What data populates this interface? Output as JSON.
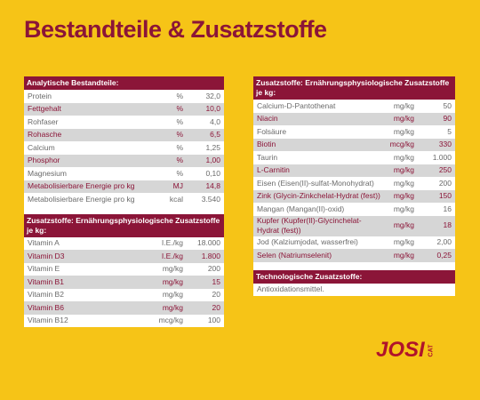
{
  "title": "Bestandteile & Zusatzstoffe",
  "tables": [
    {
      "header": "Analytische Bestandteile:",
      "rows": [
        [
          "Protein",
          "%",
          "32,0"
        ],
        [
          "Fettgehalt",
          "%",
          "10,0"
        ],
        [
          "Rohfaser",
          "%",
          "4,0"
        ],
        [
          "Rohasche",
          "%",
          "6,5"
        ],
        [
          "Calcium",
          "%",
          "1,25"
        ],
        [
          "Phosphor",
          "%",
          "1,00"
        ],
        [
          "Magnesium",
          "%",
          "0,10"
        ],
        [
          "Metabolisierbare Energie pro kg",
          "MJ",
          "14,8"
        ],
        [
          "Metabolisierbare Energie pro kg",
          "kcal",
          "3.540"
        ]
      ]
    },
    {
      "header": "Zusatzstoffe: Ernährungsphysiologische Zusatzstoffe je kg:",
      "rows": [
        [
          "Vitamin A",
          "I.E./kg",
          "18.000"
        ],
        [
          "Vitamin D3",
          "I.E./kg",
          "1.800"
        ],
        [
          "Vitamin E",
          "mg/kg",
          "200"
        ],
        [
          "Vitamin B1",
          "mg/kg",
          "15"
        ],
        [
          "Vitamin B2",
          "mg/kg",
          "20"
        ],
        [
          "Vitamin B6",
          "mg/kg",
          "20"
        ],
        [
          "Vitamin B12",
          "mcg/kg",
          "100"
        ]
      ]
    },
    {
      "header": "Zusatzstoffe: Ernährungsphysiologische Zusatzstoffe je kg:",
      "rows": [
        [
          "Calcium-D-Pantothenat",
          "mg/kg",
          "50"
        ],
        [
          "Niacin",
          "mg/kg",
          "90"
        ],
        [
          "Folsäure",
          "mg/kg",
          "5"
        ],
        [
          "Biotin",
          "mcg/kg",
          "330"
        ],
        [
          "Taurin",
          "mg/kg",
          "1.000"
        ],
        [
          "L-Carnitin",
          "mg/kg",
          "250"
        ],
        [
          "Eisen (Eisen(II)-sulfat-Monohydrat)",
          "mg/kg",
          "200"
        ],
        [
          "Zink (Glycin-Zinkchelat-Hydrat (fest))",
          "mg/kg",
          "150"
        ],
        [
          "Mangan (Mangan(II)-oxid)",
          "mg/kg",
          "16"
        ],
        [
          "Kupfer (Kupfer(II)-Glycinchelat-Hydrat (fest))",
          "mg/kg",
          "18"
        ],
        [
          "Jod (Kalziumjodat, wasserfrei)",
          "mg/kg",
          "2,00"
        ],
        [
          "Selen (Natriumselenit)",
          "mg/kg",
          "0,25"
        ]
      ]
    },
    {
      "header": "Technologische Zusatzstoffe:",
      "rows": [
        [
          "Antioxidationsmittel."
        ]
      ]
    }
  ],
  "logo": {
    "brand": "JOSI",
    "sub": "CAT"
  }
}
